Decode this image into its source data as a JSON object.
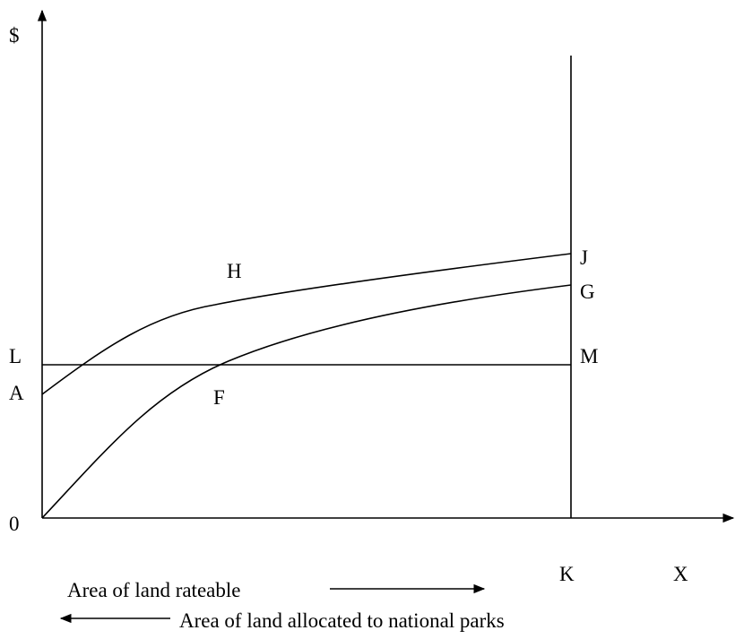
{
  "labels": {
    "y_axis": "$",
    "origin": "0",
    "x_axis": "X",
    "h": "H",
    "j": "J",
    "g": "G",
    "l": "L",
    "m": "M",
    "a": "A",
    "f": "F",
    "k": "K"
  },
  "captions": {
    "rateable": "Area of land rateable",
    "parks": "Area of land allocated to national parks"
  }
}
